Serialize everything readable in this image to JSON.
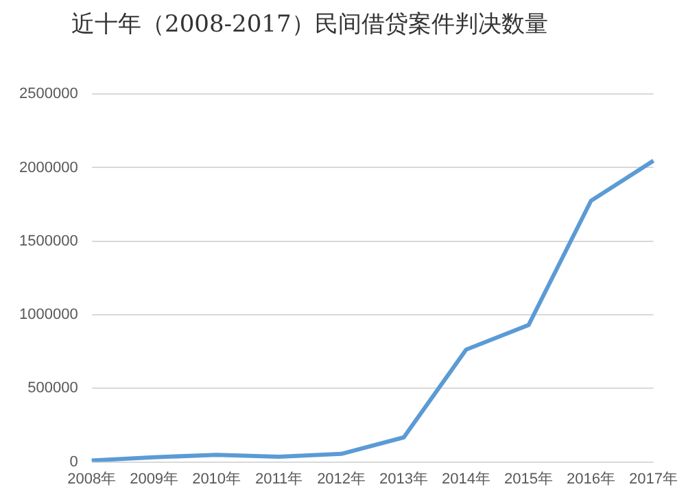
{
  "chart_data": {
    "type": "line",
    "title": "近十年（2008-2017）民间借贷案件判决数量",
    "categories": [
      "2008年",
      "2009年",
      "2010年",
      "2011年",
      "2012年",
      "2013年",
      "2014年",
      "2015年",
      "2016年",
      "2017年"
    ],
    "series": [
      {
        "color": "#5b9bd5",
        "values": [
          10000,
          32000,
          48000,
          35000,
          55000,
          167000,
          764000,
          931000,
          1775000,
          2047000
        ]
      }
    ],
    "ylim": [
      0,
      2500000
    ],
    "yticks": [
      0,
      500000,
      1000000,
      1500000,
      2000000,
      2500000
    ],
    "grid": "y",
    "legend": false,
    "marker": "none",
    "line_style": "solid"
  }
}
